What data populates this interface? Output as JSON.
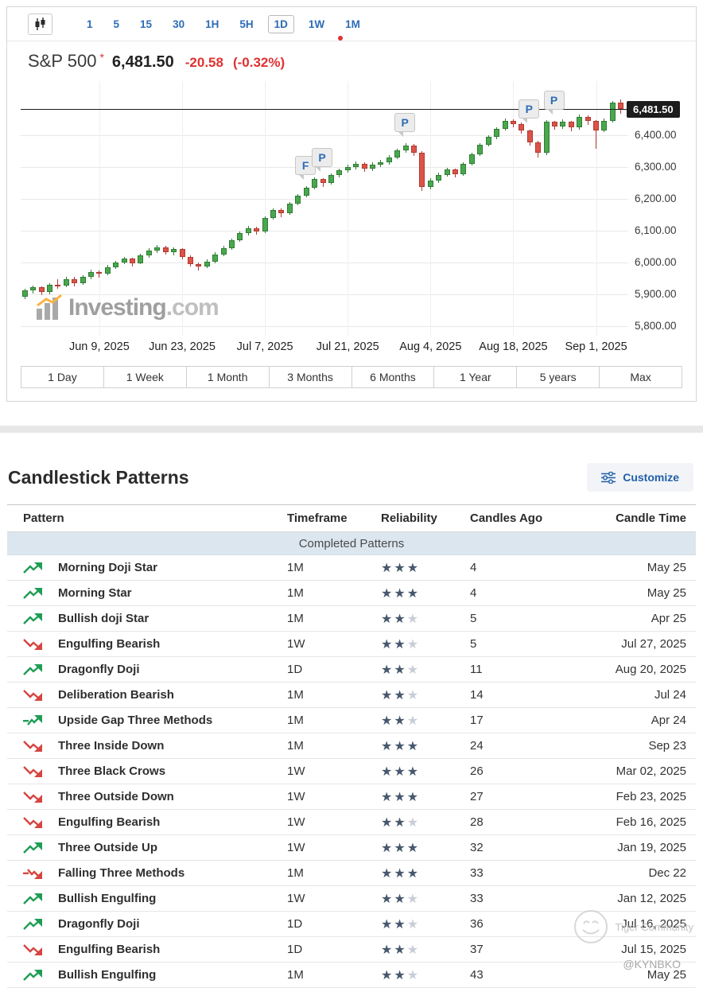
{
  "colors": {
    "accent_blue": "#2d6cb5",
    "quote_red": "#e03131",
    "candle_up": "#4aa74f",
    "candle_down": "#dc5347",
    "bull_icon": "#1f9d55",
    "bear_icon": "#d64541",
    "star_on": "#47586e",
    "star_off": "#c9cdd6",
    "section_band": "#dce6ef"
  },
  "toolbar": {
    "intervals": [
      "1",
      "5",
      "15",
      "30",
      "1H",
      "5H",
      "1D",
      "1W",
      "1M"
    ],
    "selected": "1D"
  },
  "quote": {
    "name": "S&P 500",
    "asterisk": "*",
    "price": "6,481.50",
    "change": "-20.58",
    "change_pct": "(-0.32%)"
  },
  "chart": {
    "type": "candlestick",
    "price_min": 5770,
    "price_max": 6570,
    "last_price": 6481.5,
    "last_price_label": "6,481.50",
    "y_values": [
      6400,
      6300,
      6200,
      6100,
      6000,
      5900,
      5800
    ],
    "y_labels": [
      "6,400.00",
      "6,300.00",
      "6,200.00",
      "6,100.00",
      "6,000.00",
      "5,900.00",
      "5,800.00"
    ],
    "x_tick_idx": [
      9,
      19,
      29,
      39,
      49,
      59,
      69
    ],
    "x_labels": [
      "Jun 9, 2025",
      "Jun 23, 2025",
      "Jul 7, 2025",
      "Jul 21, 2025",
      "Aug 4, 2025",
      "Aug 18, 2025",
      "Sep 1, 2025"
    ],
    "watermark_main": "Investing",
    "watermark_suffix": ".com",
    "markers": [
      {
        "label": "F",
        "i": 34
      },
      {
        "label": "P",
        "i": 36
      },
      {
        "label": "P",
        "i": 46
      },
      {
        "label": "P",
        "i": 61
      },
      {
        "label": "P",
        "i": 64
      }
    ],
    "candles": [
      [
        5892,
        5918,
        5886,
        5912
      ],
      [
        5912,
        5928,
        5902,
        5922
      ],
      [
        5922,
        5926,
        5898,
        5908
      ],
      [
        5908,
        5936,
        5900,
        5930
      ],
      [
        5930,
        5948,
        5918,
        5928
      ],
      [
        5928,
        5956,
        5922,
        5948
      ],
      [
        5948,
        5954,
        5926,
        5936
      ],
      [
        5936,
        5960,
        5930,
        5954
      ],
      [
        5954,
        5978,
        5948,
        5970
      ],
      [
        5970,
        5976,
        5952,
        5964
      ],
      [
        5964,
        5992,
        5960,
        5986
      ],
      [
        5986,
        6006,
        5980,
        6000
      ],
      [
        6000,
        6018,
        5994,
        6012
      ],
      [
        6012,
        6016,
        5988,
        5998
      ],
      [
        5998,
        6028,
        5994,
        6022
      ],
      [
        6022,
        6044,
        6016,
        6038
      ],
      [
        6038,
        6056,
        6030,
        6048
      ],
      [
        6048,
        6052,
        6024,
        6032
      ],
      [
        6032,
        6048,
        6022,
        6042
      ],
      [
        6042,
        6046,
        6010,
        6018
      ],
      [
        6018,
        6022,
        5988,
        5996
      ],
      [
        5996,
        6000,
        5976,
        5988
      ],
      [
        5988,
        6010,
        5982,
        6002
      ],
      [
        6002,
        6032,
        5998,
        6026
      ],
      [
        6026,
        6052,
        6020,
        6046
      ],
      [
        6046,
        6076,
        6040,
        6070
      ],
      [
        6070,
        6098,
        6064,
        6092
      ],
      [
        6092,
        6114,
        6086,
        6108
      ],
      [
        6108,
        6112,
        6088,
        6098
      ],
      [
        6098,
        6146,
        6092,
        6140
      ],
      [
        6140,
        6170,
        6134,
        6165
      ],
      [
        6165,
        6169,
        6143,
        6155
      ],
      [
        6155,
        6190,
        6150,
        6185
      ],
      [
        6185,
        6216,
        6180,
        6210
      ],
      [
        6210,
        6241,
        6204,
        6235
      ],
      [
        6235,
        6268,
        6230,
        6262
      ],
      [
        6262,
        6266,
        6238,
        6250
      ],
      [
        6250,
        6280,
        6244,
        6275
      ],
      [
        6275,
        6296,
        6268,
        6290
      ],
      [
        6290,
        6308,
        6282,
        6300
      ],
      [
        6300,
        6318,
        6292,
        6310
      ],
      [
        6310,
        6314,
        6286,
        6295
      ],
      [
        6295,
        6314,
        6288,
        6308
      ],
      [
        6308,
        6322,
        6300,
        6315
      ],
      [
        6315,
        6338,
        6308,
        6330
      ],
      [
        6330,
        6358,
        6324,
        6352
      ],
      [
        6352,
        6376,
        6346,
        6368
      ],
      [
        6368,
        6372,
        6336,
        6345
      ],
      [
        6345,
        6349,
        6226,
        6238
      ],
      [
        6238,
        6266,
        6230,
        6258
      ],
      [
        6258,
        6282,
        6250,
        6276
      ],
      [
        6276,
        6298,
        6270,
        6292
      ],
      [
        6292,
        6296,
        6268,
        6278
      ],
      [
        6278,
        6316,
        6272,
        6310
      ],
      [
        6310,
        6346,
        6304,
        6340
      ],
      [
        6340,
        6376,
        6334,
        6370
      ],
      [
        6370,
        6400,
        6364,
        6394
      ],
      [
        6394,
        6426,
        6388,
        6420
      ],
      [
        6420,
        6452,
        6414,
        6446
      ],
      [
        6446,
        6450,
        6424,
        6436
      ],
      [
        6436,
        6440,
        6404,
        6414
      ],
      [
        6414,
        6418,
        6368,
        6378
      ],
      [
        6378,
        6382,
        6330,
        6344
      ],
      [
        6344,
        6448,
        6338,
        6442
      ],
      [
        6442,
        6446,
        6418,
        6428
      ],
      [
        6428,
        6450,
        6420,
        6442
      ],
      [
        6442,
        6446,
        6412,
        6424
      ],
      [
        6424,
        6464,
        6418,
        6458
      ],
      [
        6458,
        6462,
        6432,
        6444
      ],
      [
        6444,
        6448,
        6358,
        6416
      ],
      [
        6416,
        6452,
        6410,
        6446
      ],
      [
        6446,
        6508,
        6440,
        6502
      ],
      [
        6502,
        6512,
        6468,
        6481.5
      ]
    ]
  },
  "ranges": [
    "1 Day",
    "1 Week",
    "1 Month",
    "3 Months",
    "6 Months",
    "1 Year",
    "5 years",
    "Max"
  ],
  "patterns": {
    "title": "Candlestick Patterns",
    "customize": "Customize",
    "columns": [
      "Pattern",
      "Timeframe",
      "Reliability",
      "Candles Ago",
      "Candle Time"
    ],
    "section": "Completed Patterns",
    "rows": [
      {
        "icon": "bull",
        "name": "Morning Doji Star",
        "timeframe": "1M",
        "reliability": 3,
        "candles_ago": "4",
        "candle_time": "May 25"
      },
      {
        "icon": "bull",
        "name": "Morning Star",
        "timeframe": "1M",
        "reliability": 3,
        "candles_ago": "4",
        "candle_time": "May 25"
      },
      {
        "icon": "bull",
        "name": "Bullish doji Star",
        "timeframe": "1M",
        "reliability": 2,
        "candles_ago": "5",
        "candle_time": "Apr 25"
      },
      {
        "icon": "bear",
        "name": "Engulfing Bearish",
        "timeframe": "1W",
        "reliability": 2,
        "candles_ago": "5",
        "candle_time": "Jul 27, 2025"
      },
      {
        "icon": "bull",
        "name": "Dragonfly Doji",
        "timeframe": "1D",
        "reliability": 2,
        "candles_ago": "11",
        "candle_time": "Aug 20, 2025"
      },
      {
        "icon": "bear",
        "name": "Deliberation Bearish",
        "timeframe": "1M",
        "reliability": 2,
        "candles_ago": "14",
        "candle_time": "Jul 24"
      },
      {
        "icon": "bullalt",
        "name": "Upside Gap Three Methods",
        "timeframe": "1M",
        "reliability": 2,
        "candles_ago": "17",
        "candle_time": "Apr 24"
      },
      {
        "icon": "bear",
        "name": "Three Inside Down",
        "timeframe": "1M",
        "reliability": 3,
        "candles_ago": "24",
        "candle_time": "Sep 23"
      },
      {
        "icon": "bear",
        "name": "Three Black Crows",
        "timeframe": "1W",
        "reliability": 3,
        "candles_ago": "26",
        "candle_time": "Mar 02, 2025"
      },
      {
        "icon": "bear",
        "name": "Three Outside Down",
        "timeframe": "1W",
        "reliability": 3,
        "candles_ago": "27",
        "candle_time": "Feb 23, 2025"
      },
      {
        "icon": "bear",
        "name": "Engulfing Bearish",
        "timeframe": "1W",
        "reliability": 2,
        "candles_ago": "28",
        "candle_time": "Feb 16, 2025"
      },
      {
        "icon": "bull",
        "name": "Three Outside Up",
        "timeframe": "1W",
        "reliability": 3,
        "candles_ago": "32",
        "candle_time": "Jan 19, 2025"
      },
      {
        "icon": "bearalt",
        "name": "Falling Three Methods",
        "timeframe": "1M",
        "reliability": 3,
        "candles_ago": "33",
        "candle_time": "Dec 22"
      },
      {
        "icon": "bull",
        "name": "Bullish Engulfing",
        "timeframe": "1W",
        "reliability": 2,
        "candles_ago": "33",
        "candle_time": "Jan 12, 2025"
      },
      {
        "icon": "bull",
        "name": "Dragonfly Doji",
        "timeframe": "1D",
        "reliability": 2,
        "candles_ago": "36",
        "candle_time": "Jul 16, 2025"
      },
      {
        "icon": "bear",
        "name": "Engulfing Bearish",
        "timeframe": "1D",
        "reliability": 2,
        "candles_ago": "37",
        "candle_time": "Jul 15, 2025"
      },
      {
        "icon": "bull",
        "name": "Bullish Engulfing",
        "timeframe": "1M",
        "reliability": 2,
        "candles_ago": "43",
        "candle_time": "May 25"
      }
    ]
  },
  "footer": {
    "community": "Tiger Community",
    "handle": "@KYNBKO"
  }
}
